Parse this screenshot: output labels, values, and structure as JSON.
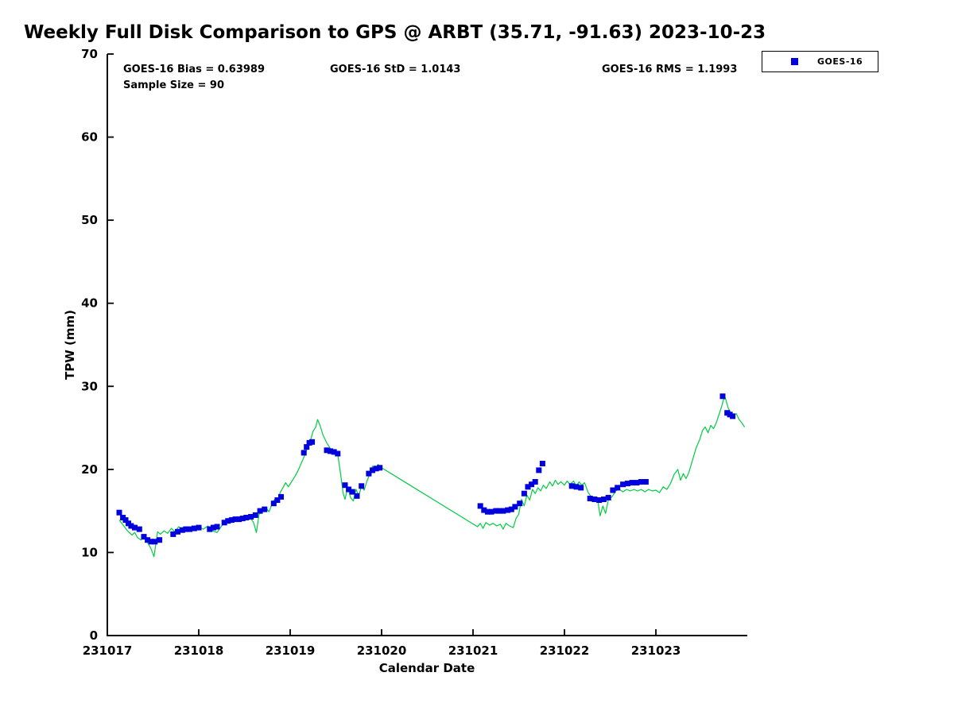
{
  "title": "Weekly Full Disk Comparison to GPS @ ARBT (35.71, -91.63) 2023-10-23",
  "annotations": {
    "bias": "GOES-16 Bias = 0.63989",
    "std": "GOES-16 StD = 1.0143",
    "rms": "GOES-16 RMS = 1.1993",
    "sample_size": "Sample Size = 90"
  },
  "legend": {
    "label": "GOES-16"
  },
  "chart_data": {
    "type": "line+scatter",
    "title": "Weekly Full Disk Comparison to GPS @ ARBT (35.71, -91.63) 2023-10-23",
    "xlabel": "Calendar Date",
    "ylabel": "TPW (mm)",
    "xlim": [
      231017,
      231024
    ],
    "ylim": [
      0,
      70
    ],
    "xticks": [
      231017,
      231018,
      231019,
      231020,
      231021,
      231022,
      231023
    ],
    "yticks": [
      0,
      10,
      20,
      30,
      40,
      50,
      60,
      70
    ],
    "grid": false,
    "legend_position": "top-right-outside",
    "series": [
      {
        "name": "GPS",
        "type": "line",
        "color": "#00cc44",
        "points": [
          [
            231017.13,
            13.9
          ],
          [
            231017.18,
            13.2
          ],
          [
            231017.22,
            12.6
          ],
          [
            231017.27,
            12.1
          ],
          [
            231017.3,
            12.4
          ],
          [
            231017.33,
            11.8
          ],
          [
            231017.37,
            11.5
          ],
          [
            231017.4,
            11.9
          ],
          [
            231017.44,
            11.2
          ],
          [
            231017.48,
            10.4
          ],
          [
            231017.51,
            9.5
          ],
          [
            231017.55,
            12.5
          ],
          [
            231017.58,
            12.2
          ],
          [
            231017.62,
            12.6
          ],
          [
            231017.66,
            12.3
          ],
          [
            231017.7,
            12.9
          ],
          [
            231017.74,
            12.5
          ],
          [
            231017.78,
            13.1
          ],
          [
            231017.82,
            12.7
          ],
          [
            231017.86,
            13.0
          ],
          [
            231017.9,
            12.7
          ],
          [
            231017.95,
            12.9
          ],
          [
            231018.0,
            13.1
          ],
          [
            231018.05,
            12.8
          ],
          [
            231018.1,
            13.2
          ],
          [
            231018.15,
            12.6
          ],
          [
            231018.2,
            12.4
          ],
          [
            231018.25,
            13.2
          ],
          [
            231018.3,
            13.7
          ],
          [
            231018.35,
            14.0
          ],
          [
            231018.4,
            13.8
          ],
          [
            231018.45,
            14.2
          ],
          [
            231018.5,
            13.9
          ],
          [
            231018.55,
            14.4
          ],
          [
            231018.6,
            13.6
          ],
          [
            231018.63,
            12.4
          ],
          [
            231018.66,
            14.6
          ],
          [
            231018.7,
            15.0
          ],
          [
            231018.74,
            15.3
          ],
          [
            231018.77,
            14.9
          ],
          [
            231018.8,
            15.8
          ],
          [
            231018.83,
            16.4
          ],
          [
            231018.86,
            16.1
          ],
          [
            231018.89,
            17.2
          ],
          [
            231018.92,
            17.8
          ],
          [
            231018.95,
            18.4
          ],
          [
            231018.98,
            17.9
          ],
          [
            231019.02,
            18.6
          ],
          [
            231019.06,
            19.3
          ],
          [
            231019.1,
            20.2
          ],
          [
            231019.14,
            21.2
          ],
          [
            231019.18,
            22.3
          ],
          [
            231019.22,
            23.4
          ],
          [
            231019.25,
            24.6
          ],
          [
            231019.28,
            25.1
          ],
          [
            231019.3,
            26.0
          ],
          [
            231019.33,
            25.2
          ],
          [
            231019.36,
            24.1
          ],
          [
            231019.4,
            23.2
          ],
          [
            231019.44,
            22.5
          ],
          [
            231019.48,
            22.2
          ],
          [
            231019.52,
            21.8
          ],
          [
            231019.55,
            19.6
          ],
          [
            231019.58,
            17.1
          ],
          [
            231019.6,
            16.4
          ],
          [
            231019.63,
            17.9
          ],
          [
            231019.66,
            16.6
          ],
          [
            231019.69,
            16.2
          ],
          [
            231019.72,
            17.6
          ],
          [
            231019.75,
            16.8
          ],
          [
            231019.78,
            18.0
          ],
          [
            231019.81,
            17.5
          ],
          [
            231019.84,
            18.6
          ],
          [
            231019.87,
            19.4
          ],
          [
            231019.9,
            20.4
          ],
          [
            231019.93,
            19.9
          ],
          [
            231019.96,
            20.6
          ],
          [
            231020.0,
            20.2
          ],
          [
            231021.05,
            13.1
          ],
          [
            231021.08,
            13.5
          ],
          [
            231021.11,
            12.9
          ],
          [
            231021.14,
            13.6
          ],
          [
            231021.18,
            13.3
          ],
          [
            231021.22,
            13.5
          ],
          [
            231021.26,
            13.2
          ],
          [
            231021.3,
            13.4
          ],
          [
            231021.33,
            12.8
          ],
          [
            231021.36,
            13.5
          ],
          [
            231021.4,
            13.2
          ],
          [
            231021.44,
            13.0
          ],
          [
            231021.47,
            14.1
          ],
          [
            231021.5,
            14.6
          ],
          [
            231021.53,
            16.4
          ],
          [
            231021.56,
            15.6
          ],
          [
            231021.59,
            16.9
          ],
          [
            231021.62,
            16.3
          ],
          [
            231021.65,
            17.6
          ],
          [
            231021.68,
            17.1
          ],
          [
            231021.71,
            17.8
          ],
          [
            231021.74,
            17.4
          ],
          [
            231021.77,
            18.1
          ],
          [
            231021.8,
            17.7
          ],
          [
            231021.84,
            18.5
          ],
          [
            231021.87,
            18.0
          ],
          [
            231021.9,
            18.7
          ],
          [
            231021.93,
            18.2
          ],
          [
            231021.96,
            18.5
          ],
          [
            231022.0,
            18.1
          ],
          [
            231022.03,
            18.6
          ],
          [
            231022.06,
            18.2
          ],
          [
            231022.1,
            18.6
          ],
          [
            231022.13,
            18.0
          ],
          [
            231022.16,
            18.5
          ],
          [
            231022.19,
            18.1
          ],
          [
            231022.22,
            18.4
          ],
          [
            231022.26,
            17.2
          ],
          [
            231022.3,
            16.6
          ],
          [
            231022.33,
            16.2
          ],
          [
            231022.36,
            16.6
          ],
          [
            231022.39,
            14.4
          ],
          [
            231022.42,
            15.6
          ],
          [
            231022.45,
            14.7
          ],
          [
            231022.48,
            16.4
          ],
          [
            231022.52,
            16.7
          ],
          [
            231022.56,
            17.4
          ],
          [
            231022.6,
            17.6
          ],
          [
            231022.64,
            17.3
          ],
          [
            231022.68,
            17.6
          ],
          [
            231022.72,
            17.4
          ],
          [
            231022.76,
            17.6
          ],
          [
            231022.8,
            17.4
          ],
          [
            231022.84,
            17.6
          ],
          [
            231022.88,
            17.3
          ],
          [
            231022.92,
            17.6
          ],
          [
            231022.96,
            17.4
          ],
          [
            231023.0,
            17.5
          ],
          [
            231023.04,
            17.2
          ],
          [
            231023.08,
            17.9
          ],
          [
            231023.12,
            17.6
          ],
          [
            231023.16,
            18.3
          ],
          [
            231023.2,
            19.4
          ],
          [
            231023.24,
            20.0
          ],
          [
            231023.27,
            18.7
          ],
          [
            231023.3,
            19.5
          ],
          [
            231023.33,
            18.9
          ],
          [
            231023.36,
            19.6
          ],
          [
            231023.4,
            21.1
          ],
          [
            231023.44,
            22.6
          ],
          [
            231023.48,
            23.6
          ],
          [
            231023.51,
            24.7
          ],
          [
            231023.54,
            25.1
          ],
          [
            231023.57,
            24.4
          ],
          [
            231023.6,
            25.3
          ],
          [
            231023.63,
            24.9
          ],
          [
            231023.66,
            25.6
          ],
          [
            231023.69,
            26.6
          ],
          [
            231023.72,
            27.6
          ],
          [
            231023.74,
            28.4
          ],
          [
            231023.76,
            28.6
          ],
          [
            231023.79,
            27.4
          ],
          [
            231023.82,
            26.8
          ],
          [
            231023.85,
            26.5
          ],
          [
            231023.88,
            26.7
          ],
          [
            231023.91,
            26.0
          ],
          [
            231023.94,
            25.6
          ],
          [
            231023.97,
            25.1
          ]
        ]
      },
      {
        "name": "GOES-16",
        "type": "scatter",
        "marker": "square",
        "color": "#0000dd",
        "points": [
          [
            231017.13,
            14.8
          ],
          [
            231017.17,
            14.2
          ],
          [
            231017.2,
            13.9
          ],
          [
            231017.23,
            13.5
          ],
          [
            231017.26,
            13.2
          ],
          [
            231017.3,
            13.0
          ],
          [
            231017.35,
            12.8
          ],
          [
            231017.4,
            11.9
          ],
          [
            231017.44,
            11.5
          ],
          [
            231017.48,
            11.3
          ],
          [
            231017.52,
            11.3
          ],
          [
            231017.57,
            11.5
          ],
          [
            231017.72,
            12.2
          ],
          [
            231017.77,
            12.5
          ],
          [
            231017.82,
            12.7
          ],
          [
            231017.86,
            12.8
          ],
          [
            231017.9,
            12.8
          ],
          [
            231017.95,
            12.9
          ],
          [
            231018.0,
            13.0
          ],
          [
            231018.12,
            12.8
          ],
          [
            231018.16,
            13.0
          ],
          [
            231018.2,
            13.1
          ],
          [
            231018.28,
            13.6
          ],
          [
            231018.32,
            13.8
          ],
          [
            231018.36,
            13.9
          ],
          [
            231018.4,
            14.0
          ],
          [
            231018.44,
            14.0
          ],
          [
            231018.48,
            14.1
          ],
          [
            231018.52,
            14.2
          ],
          [
            231018.57,
            14.3
          ],
          [
            231018.62,
            14.5
          ],
          [
            231018.67,
            15.0
          ],
          [
            231018.72,
            15.2
          ],
          [
            231018.82,
            15.9
          ],
          [
            231018.86,
            16.3
          ],
          [
            231018.9,
            16.7
          ],
          [
            231019.15,
            22.0
          ],
          [
            231019.18,
            22.7
          ],
          [
            231019.21,
            23.2
          ],
          [
            231019.24,
            23.3
          ],
          [
            231019.4,
            22.3
          ],
          [
            231019.44,
            22.2
          ],
          [
            231019.48,
            22.1
          ],
          [
            231019.52,
            21.9
          ],
          [
            231019.6,
            18.1
          ],
          [
            231019.64,
            17.6
          ],
          [
            231019.68,
            17.3
          ],
          [
            231019.73,
            16.8
          ],
          [
            231019.78,
            18.0
          ],
          [
            231019.86,
            19.5
          ],
          [
            231019.9,
            19.9
          ],
          [
            231019.94,
            20.1
          ],
          [
            231019.98,
            20.2
          ],
          [
            231021.08,
            15.6
          ],
          [
            231021.12,
            15.1
          ],
          [
            231021.16,
            14.9
          ],
          [
            231021.2,
            14.9
          ],
          [
            231021.25,
            15.0
          ],
          [
            231021.29,
            15.0
          ],
          [
            231021.33,
            15.0
          ],
          [
            231021.38,
            15.1
          ],
          [
            231021.42,
            15.2
          ],
          [
            231021.46,
            15.5
          ],
          [
            231021.51,
            15.9
          ],
          [
            231021.56,
            17.1
          ],
          [
            231021.6,
            17.9
          ],
          [
            231021.64,
            18.2
          ],
          [
            231021.68,
            18.5
          ],
          [
            231021.72,
            19.9
          ],
          [
            231021.76,
            20.7
          ],
          [
            231022.08,
            18.0
          ],
          [
            231022.13,
            17.9
          ],
          [
            231022.18,
            17.8
          ],
          [
            231022.28,
            16.5
          ],
          [
            231022.33,
            16.4
          ],
          [
            231022.38,
            16.3
          ],
          [
            231022.43,
            16.4
          ],
          [
            231022.48,
            16.6
          ],
          [
            231022.53,
            17.5
          ],
          [
            231022.58,
            17.8
          ],
          [
            231022.64,
            18.2
          ],
          [
            231022.69,
            18.3
          ],
          [
            231022.74,
            18.4
          ],
          [
            231022.79,
            18.4
          ],
          [
            231022.84,
            18.5
          ],
          [
            231022.89,
            18.5
          ],
          [
            231023.73,
            28.8
          ],
          [
            231023.78,
            26.8
          ],
          [
            231023.81,
            26.6
          ],
          [
            231023.84,
            26.4
          ]
        ]
      }
    ]
  }
}
